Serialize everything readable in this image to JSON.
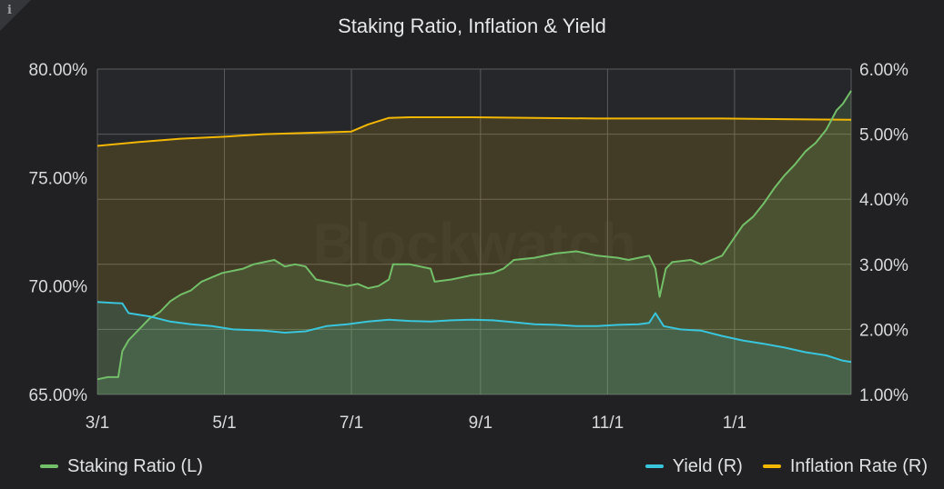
{
  "info_icon": "i",
  "title": "Staking Ratio, Inflation & Yield",
  "watermark": "Blockwatch",
  "colors": {
    "staking": "#73bf69",
    "yield": "#39c5dc",
    "inflation": "#f2b705",
    "grid": "#5a5b5e",
    "plot_bg": "#26272a"
  },
  "chart_data": {
    "type": "line",
    "title": "Staking Ratio, Inflation & Yield",
    "x_ticks": [
      "3/1",
      "5/1",
      "7/1",
      "9/1",
      "11/1",
      "1/1"
    ],
    "x_tick_days": [
      0,
      61,
      122,
      184,
      245,
      306
    ],
    "x_range": [
      0,
      362
    ],
    "left_axis": {
      "ticks": [
        "80.00%",
        "75.00%",
        "70.00%",
        "65.00%"
      ],
      "range": [
        65,
        80
      ]
    },
    "right_axis": {
      "ticks": [
        "6.00%",
        "5.00%",
        "4.00%",
        "3.00%",
        "2.00%",
        "1.00%"
      ],
      "range": [
        1,
        6
      ]
    },
    "grid": true,
    "legend_placement": "bottom",
    "series": [
      {
        "name": "Staking Ratio (L)",
        "axis": "left",
        "color": "#73bf69",
        "points": [
          [
            0,
            65.7
          ],
          [
            5,
            65.8
          ],
          [
            10,
            65.8
          ],
          [
            12,
            67.0
          ],
          [
            15,
            67.5
          ],
          [
            20,
            68.0
          ],
          [
            25,
            68.5
          ],
          [
            30,
            68.8
          ],
          [
            35,
            69.3
          ],
          [
            40,
            69.6
          ],
          [
            45,
            69.8
          ],
          [
            50,
            70.2
          ],
          [
            55,
            70.4
          ],
          [
            60,
            70.6
          ],
          [
            65,
            70.7
          ],
          [
            70,
            70.8
          ],
          [
            75,
            71.0
          ],
          [
            80,
            71.1
          ],
          [
            85,
            71.2
          ],
          [
            90,
            70.9
          ],
          [
            95,
            71.0
          ],
          [
            100,
            70.9
          ],
          [
            105,
            70.3
          ],
          [
            110,
            70.2
          ],
          [
            115,
            70.1
          ],
          [
            120,
            70.0
          ],
          [
            125,
            70.1
          ],
          [
            130,
            69.9
          ],
          [
            135,
            70.0
          ],
          [
            140,
            70.3
          ],
          [
            142,
            71.0
          ],
          [
            150,
            71.0
          ],
          [
            160,
            70.8
          ],
          [
            162,
            70.2
          ],
          [
            170,
            70.3
          ],
          [
            180,
            70.5
          ],
          [
            190,
            70.6
          ],
          [
            195,
            70.8
          ],
          [
            200,
            71.2
          ],
          [
            210,
            71.3
          ],
          [
            220,
            71.5
          ],
          [
            230,
            71.6
          ],
          [
            240,
            71.4
          ],
          [
            250,
            71.3
          ],
          [
            255,
            71.2
          ],
          [
            260,
            71.3
          ],
          [
            265,
            71.4
          ],
          [
            268,
            70.8
          ],
          [
            270,
            69.5
          ],
          [
            273,
            70.8
          ],
          [
            276,
            71.1
          ],
          [
            285,
            71.2
          ],
          [
            290,
            71.0
          ],
          [
            295,
            71.2
          ],
          [
            300,
            71.4
          ],
          [
            305,
            72.1
          ],
          [
            310,
            72.8
          ],
          [
            315,
            73.2
          ],
          [
            320,
            73.8
          ],
          [
            325,
            74.5
          ],
          [
            330,
            75.1
          ],
          [
            335,
            75.6
          ],
          [
            340,
            76.2
          ],
          [
            345,
            76.6
          ],
          [
            350,
            77.2
          ],
          [
            355,
            78.1
          ],
          [
            358,
            78.4
          ],
          [
            362,
            79.0
          ]
        ]
      },
      {
        "name": "Yield (R)",
        "axis": "right",
        "color": "#39c5dc",
        "points": [
          [
            0,
            2.42
          ],
          [
            12,
            2.4
          ],
          [
            15,
            2.25
          ],
          [
            25,
            2.2
          ],
          [
            35,
            2.12
          ],
          [
            45,
            2.08
          ],
          [
            55,
            2.05
          ],
          [
            65,
            2.0
          ],
          [
            80,
            1.98
          ],
          [
            90,
            1.95
          ],
          [
            100,
            1.97
          ],
          [
            110,
            2.05
          ],
          [
            120,
            2.08
          ],
          [
            130,
            2.12
          ],
          [
            140,
            2.15
          ],
          [
            150,
            2.13
          ],
          [
            160,
            2.12
          ],
          [
            170,
            2.14
          ],
          [
            180,
            2.15
          ],
          [
            190,
            2.14
          ],
          [
            200,
            2.11
          ],
          [
            210,
            2.08
          ],
          [
            220,
            2.07
          ],
          [
            230,
            2.05
          ],
          [
            240,
            2.05
          ],
          [
            250,
            2.07
          ],
          [
            260,
            2.08
          ],
          [
            265,
            2.1
          ],
          [
            268,
            2.25
          ],
          [
            272,
            2.05
          ],
          [
            280,
            2.0
          ],
          [
            290,
            1.98
          ],
          [
            300,
            1.9
          ],
          [
            310,
            1.83
          ],
          [
            320,
            1.78
          ],
          [
            330,
            1.72
          ],
          [
            340,
            1.65
          ],
          [
            350,
            1.6
          ],
          [
            358,
            1.52
          ],
          [
            362,
            1.5
          ]
        ]
      },
      {
        "name": "Inflation Rate (R)",
        "axis": "right",
        "color": "#f2b705",
        "points": [
          [
            0,
            4.82
          ],
          [
            20,
            4.88
          ],
          [
            40,
            4.93
          ],
          [
            60,
            4.96
          ],
          [
            80,
            5.0
          ],
          [
            100,
            5.02
          ],
          [
            122,
            5.04
          ],
          [
            130,
            5.15
          ],
          [
            140,
            5.25
          ],
          [
            150,
            5.26
          ],
          [
            180,
            5.26
          ],
          [
            210,
            5.25
          ],
          [
            240,
            5.24
          ],
          [
            270,
            5.24
          ],
          [
            300,
            5.24
          ],
          [
            330,
            5.23
          ],
          [
            362,
            5.22
          ]
        ]
      }
    ]
  },
  "legend": {
    "left": [
      {
        "label": "Staking Ratio (L)",
        "color": "#73bf69"
      }
    ],
    "right": [
      {
        "label": "Yield (R)",
        "color": "#39c5dc"
      },
      {
        "label": "Inflation Rate (R)",
        "color": "#f2b705"
      }
    ]
  }
}
